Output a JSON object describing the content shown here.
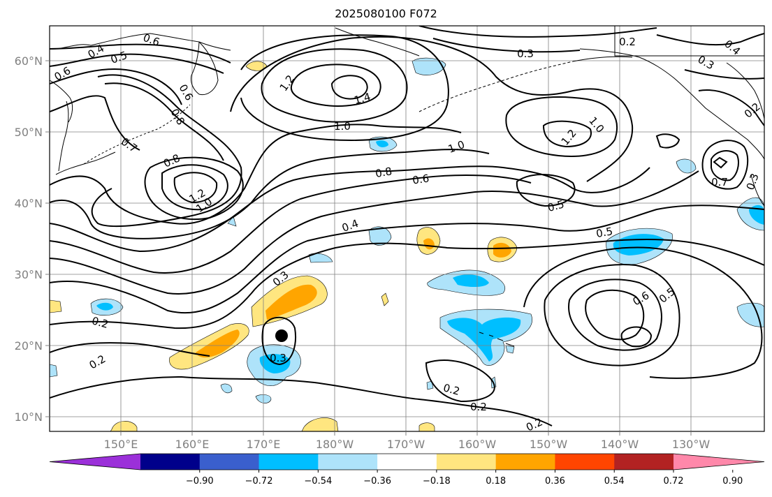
{
  "title": "2025080100 F072",
  "lat_labels": [
    "60°N",
    "50°N",
    "40°N",
    "30°N",
    "20°N",
    "10°N"
  ],
  "lon_labels": [
    "150°E",
    "160°E",
    "170°E",
    "180°W",
    "170°W",
    "160°W",
    "150°W",
    "140°W",
    "130°W"
  ],
  "contour_labels": [
    "0.6",
    "0.4",
    "0.5",
    "0.6",
    "0.6",
    "0.8",
    "0.7",
    "0.8",
    "1.2",
    "1.0",
    "1.2",
    "1.4",
    "1.0",
    "0.8",
    "0.6",
    "1.0",
    "1.2",
    "1.0",
    "0.5",
    "0.4",
    "0.5",
    "0.3",
    "0.2",
    "0.2",
    "0.3",
    "0.2",
    "0.2",
    "0.2",
    "0.6",
    "0.5",
    "0.3",
    "0.2",
    "0.4",
    "0.3",
    "0.2",
    "0.7",
    "0.3"
  ],
  "colorbar": {
    "tick_labels": [
      "−0.90",
      "−0.72",
      "−0.54",
      "−0.36",
      "−0.18",
      "0.18",
      "0.36",
      "0.54",
      "0.72",
      "0.90"
    ],
    "colors": [
      "#9b30d9",
      "#00008b",
      "#3a5fcd",
      "#00bfff",
      "#aee3fa",
      "#ffffff",
      "#ffe680",
      "#ffa500",
      "#ff4500",
      "#b22222",
      "#ff88aa"
    ]
  },
  "colors": {
    "contour": "#000000",
    "grid": "#808080",
    "coast": "#000000",
    "tick_text": "#808080"
  }
}
